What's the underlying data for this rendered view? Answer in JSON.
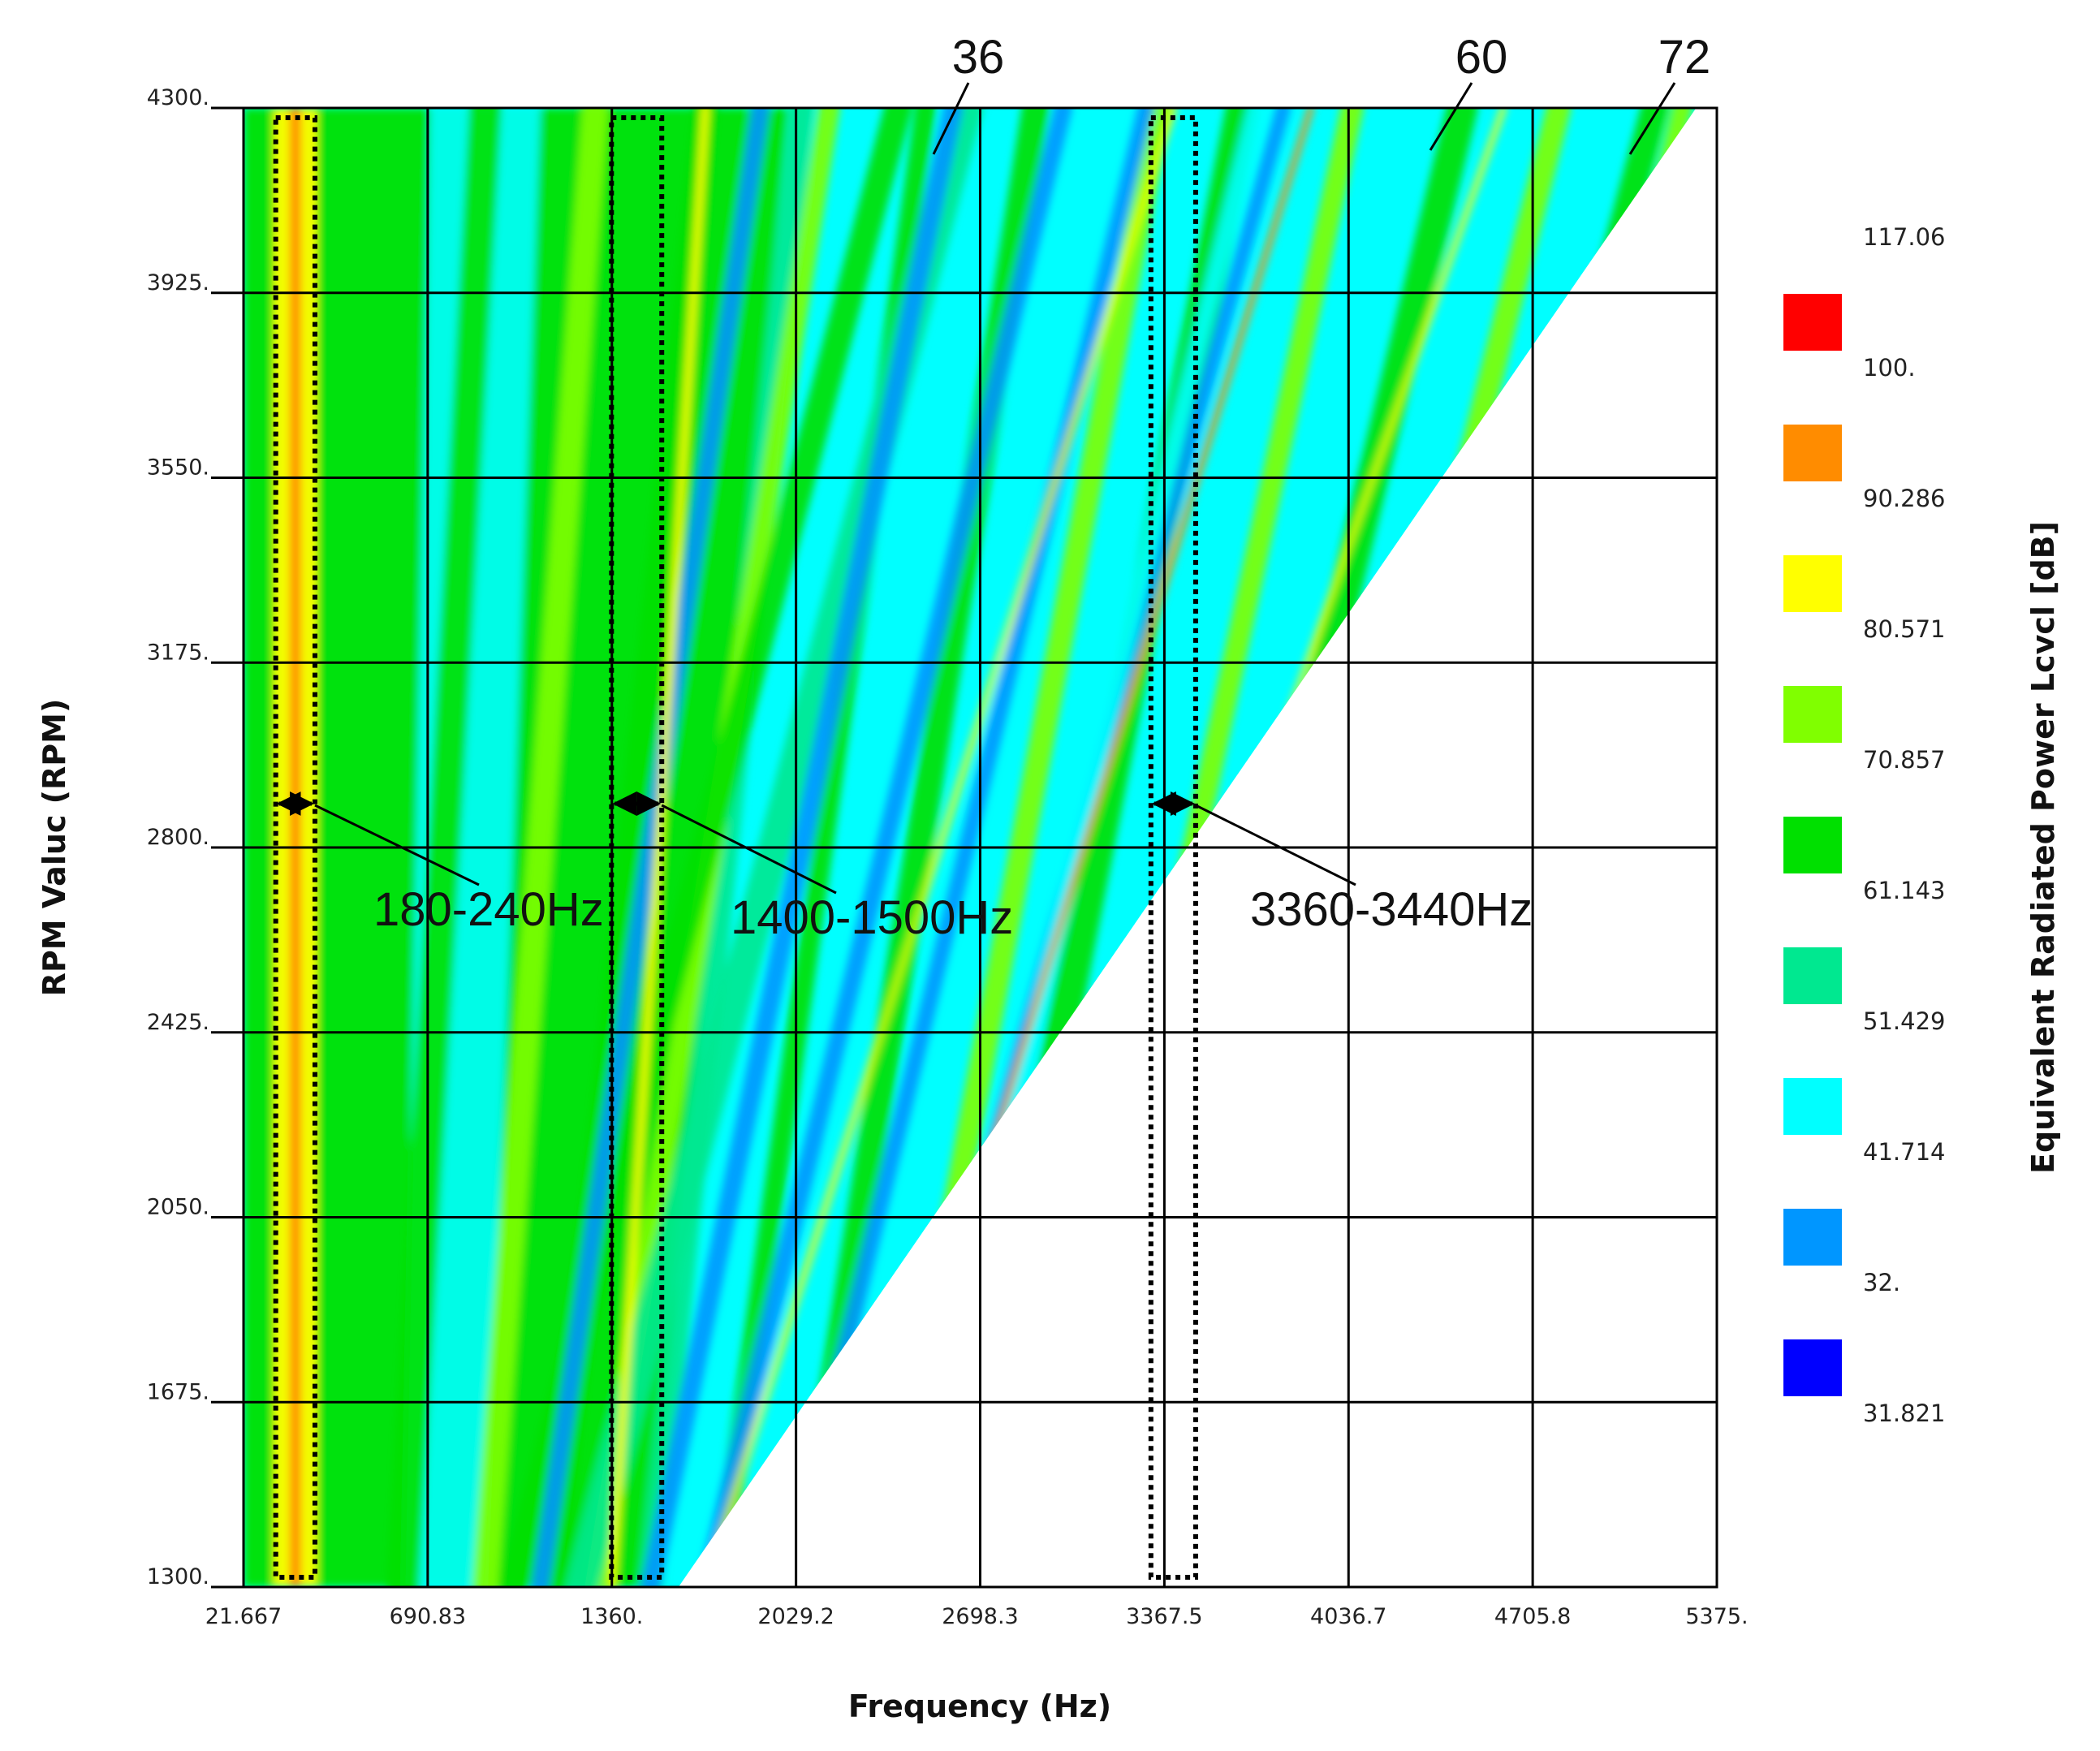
{
  "chart_data": {
    "type": "heatmap",
    "title": "",
    "xlabel": "Frequency (Hz)",
    "ylabel": "RPM Valuc (RPM)",
    "colorbar_label": "Equivalent Radiated Power Lcvcl [dB]",
    "xlim": [
      21.667,
      5375
    ],
    "ylim": [
      1300,
      4300
    ],
    "x_ticks": [
      "21.667",
      "690.83",
      "1360.",
      "2029.2",
      "2698.3",
      "3367.5",
      "4036.7",
      "4705.8",
      "5375."
    ],
    "x_tick_values": [
      21.667,
      690.83,
      1360,
      2029.2,
      2698.3,
      3367.5,
      4036.7,
      4705.8,
      5375
    ],
    "y_ticks": [
      "4300.",
      "3925.",
      "3550.",
      "3175.",
      "2800.",
      "2425.",
      "2050.",
      "1675.",
      "1300."
    ],
    "y_tick_values": [
      4300,
      3925,
      3550,
      3175,
      2800,
      2425,
      2050,
      1675,
      1300
    ],
    "grid": true,
    "colorbar": {
      "labels": [
        "117.06",
        "100.",
        "90.286",
        "80.571",
        "70.857",
        "61.143",
        "51.429",
        "41.714",
        "32.",
        "31.821"
      ],
      "colors": [
        "#ff0000",
        "#ff8c00",
        "#ffff00",
        "#80ff00",
        "#00e000",
        "#00e890",
        "#00ffff",
        "#0096ff",
        "#0000ff"
      ]
    },
    "orders": [
      {
        "label": "36",
        "order": 36
      },
      {
        "label": "60",
        "order": 60
      },
      {
        "label": "72",
        "order": 72
      }
    ],
    "highlight_bands": [
      {
        "label": "180-240Hz",
        "f_min": 180,
        "f_max": 240
      },
      {
        "label": "1400-1500Hz",
        "f_min": 1400,
        "f_max": 1500
      },
      {
        "label": "3360-3440Hz",
        "f_min": 3360,
        "f_max": 3440
      }
    ]
  }
}
